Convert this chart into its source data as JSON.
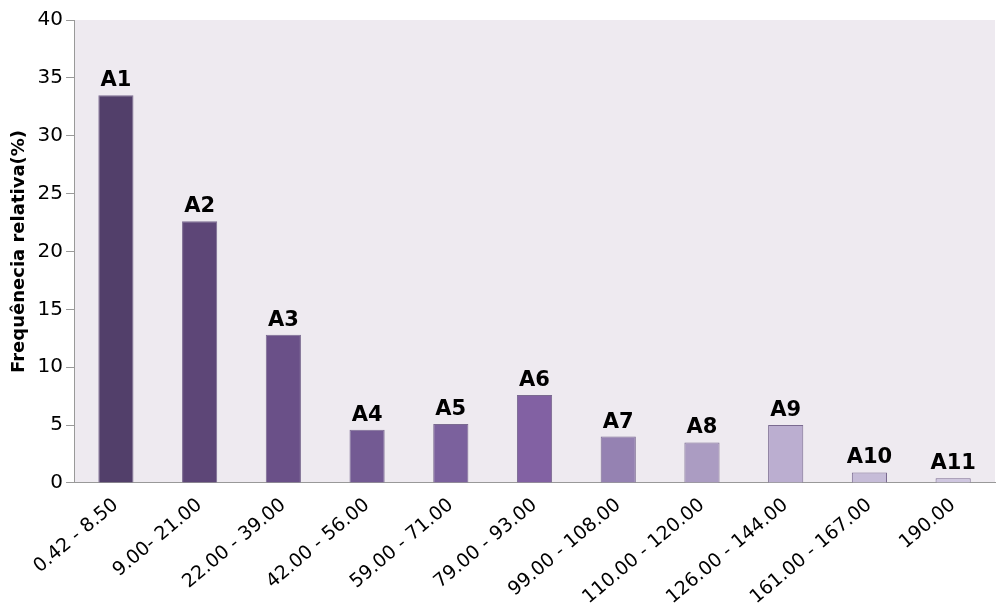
{
  "chart_data": {
    "type": "bar",
    "ylabel": "Frequênecia relativa(%)",
    "categories": [
      "0.42 - 8.50",
      "9.00- 21.00",
      "22.00 - 39.00",
      "42.00 - 56.00",
      "59.00 - 71.00",
      "79.00 - 93.00",
      "99.00 - 108.00",
      "110.00 - 120.00",
      "126.00 - 144.00",
      "161.00 - 167.00",
      "190.00"
    ],
    "values": [
      33.5,
      22.6,
      12.8,
      4.6,
      5.1,
      7.6,
      4.0,
      3.5,
      5.0,
      0.9,
      0.4
    ],
    "colors": [
      "#523f6a",
      "#5d4677",
      "#6a5088",
      "#735a93",
      "#7b619d",
      "#8261a3",
      "#9582b2",
      "#ab9cc2",
      "#bbaed0",
      "#c6bcd8",
      "#cfc6e0"
    ],
    "ylim": [
      0,
      40
    ],
    "yticks": [
      0,
      5,
      10,
      15,
      20,
      25,
      30,
      35,
      40
    ],
    "grid": false,
    "legend": false,
    "annotations": [
      {
        "text": "A1",
        "x": "0.42 - 8.50",
        "y": 33.5
      },
      {
        "text": "A2",
        "x": "9.00- 21.00",
        "y": 22.6
      },
      {
        "text": "A3",
        "x": "22.00 - 39.00",
        "y": 12.8
      },
      {
        "text": "A4",
        "x": "42.00 - 56.00",
        "y": 4.6
      },
      {
        "text": "A5",
        "x": "59.00 - 71.00",
        "y": 5.1
      },
      {
        "text": "A6",
        "x": "79.00 - 93.00",
        "y": 7.6
      },
      {
        "text": "A7",
        "x": "99.00 - 108.00",
        "y": 4.0
      },
      {
        "text": "A8",
        "x": "110.00 - 120.00",
        "y": 3.5
      },
      {
        "text": "A9",
        "x": "126.00 - 144.00",
        "y": 5.0
      },
      {
        "text": "A10",
        "x": "161.00 - 167.00",
        "y": 0.9
      },
      {
        "text": "A11",
        "x": "190.00",
        "y": 0.4
      }
    ]
  }
}
